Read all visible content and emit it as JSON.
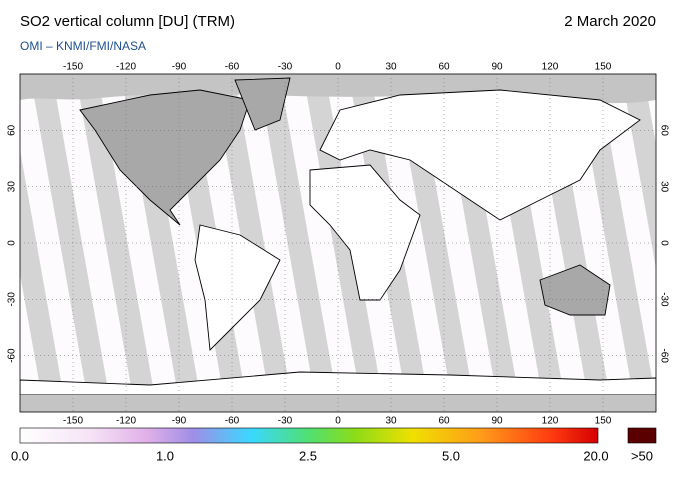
{
  "header": {
    "title": "SO2 vertical column [DU] (TRM)",
    "date": "2 March 2020",
    "credit": "OMI  –  KNMI/FMI/NASA"
  },
  "map": {
    "lon_lim": [
      -180,
      180
    ],
    "lat_lim": [
      -90,
      90
    ],
    "lon_ticks": [
      -150,
      -120,
      -90,
      -60,
      -30,
      0,
      30,
      60,
      90,
      120,
      150
    ],
    "lat_ticks": [
      60,
      30,
      0,
      -30,
      -60
    ]
  },
  "colorbar": {
    "labels": [
      "0.0",
      "1.0",
      "2.5",
      "5.0",
      "20.0"
    ],
    "overflow_label": ">50"
  }
}
